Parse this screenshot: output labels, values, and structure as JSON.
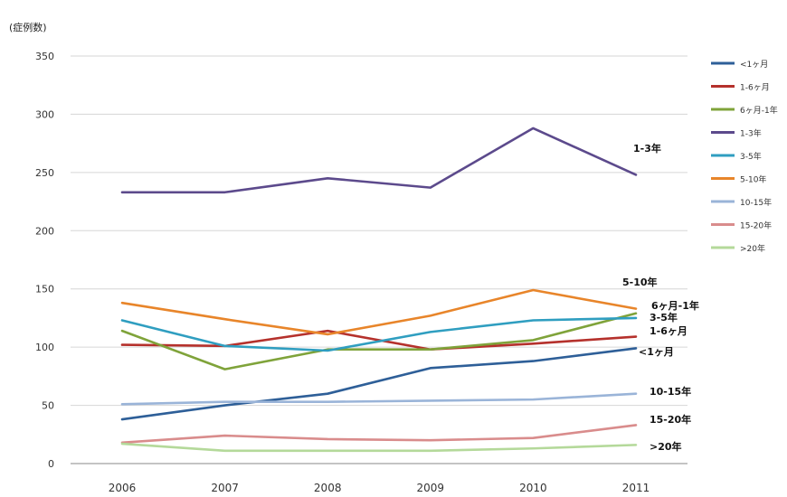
{
  "chart_data": {
    "type": "line",
    "ylabel": "(症例数)",
    "x": [
      "2006",
      "2007",
      "2008",
      "2009",
      "2010",
      "2011"
    ],
    "ylim": [
      0,
      350
    ],
    "yticks": [
      0,
      50,
      100,
      150,
      200,
      250,
      300,
      350
    ],
    "grid": true,
    "legend_position": "right",
    "series": [
      {
        "name": "<1ヶ月",
        "color": "#2e5f98",
        "values": [
          38,
          50,
          60,
          82,
          88,
          99
        ],
        "label": "<1ヶ月"
      },
      {
        "name": "1-6ヶ月",
        "color": "#b5312c",
        "values": [
          102,
          101,
          114,
          98,
          103,
          109
        ],
        "label": "1-6ヶ月"
      },
      {
        "name": "6ヶ月-1年",
        "color": "#7fa33a",
        "values": [
          114,
          81,
          98,
          98,
          106,
          129
        ],
        "label": "6ヶ月-1年"
      },
      {
        "name": "1-3年",
        "color": "#5c4a8c",
        "values": [
          233,
          233,
          245,
          237,
          288,
          248
        ],
        "label": "1-3年"
      },
      {
        "name": "3-5年",
        "color": "#2f9ec0",
        "values": [
          123,
          101,
          97,
          113,
          123,
          125
        ],
        "label": "3-5年"
      },
      {
        "name": "5-10年",
        "color": "#e8852a",
        "values": [
          138,
          124,
          111,
          127,
          149,
          133
        ],
        "label": "5-10年"
      },
      {
        "name": "10-15年",
        "color": "#9ab4d8",
        "values": [
          51,
          53,
          53,
          54,
          55,
          60
        ],
        "label": "10-15年"
      },
      {
        "name": "15-20年",
        "color": "#d98c8c",
        "values": [
          18,
          24,
          21,
          20,
          22,
          33
        ],
        "label": "15-20年"
      },
      {
        "name": ">20年",
        "color": "#b4d99a",
        "values": [
          17,
          11,
          11,
          11,
          13,
          16
        ],
        "label": ">20年"
      }
    ]
  }
}
